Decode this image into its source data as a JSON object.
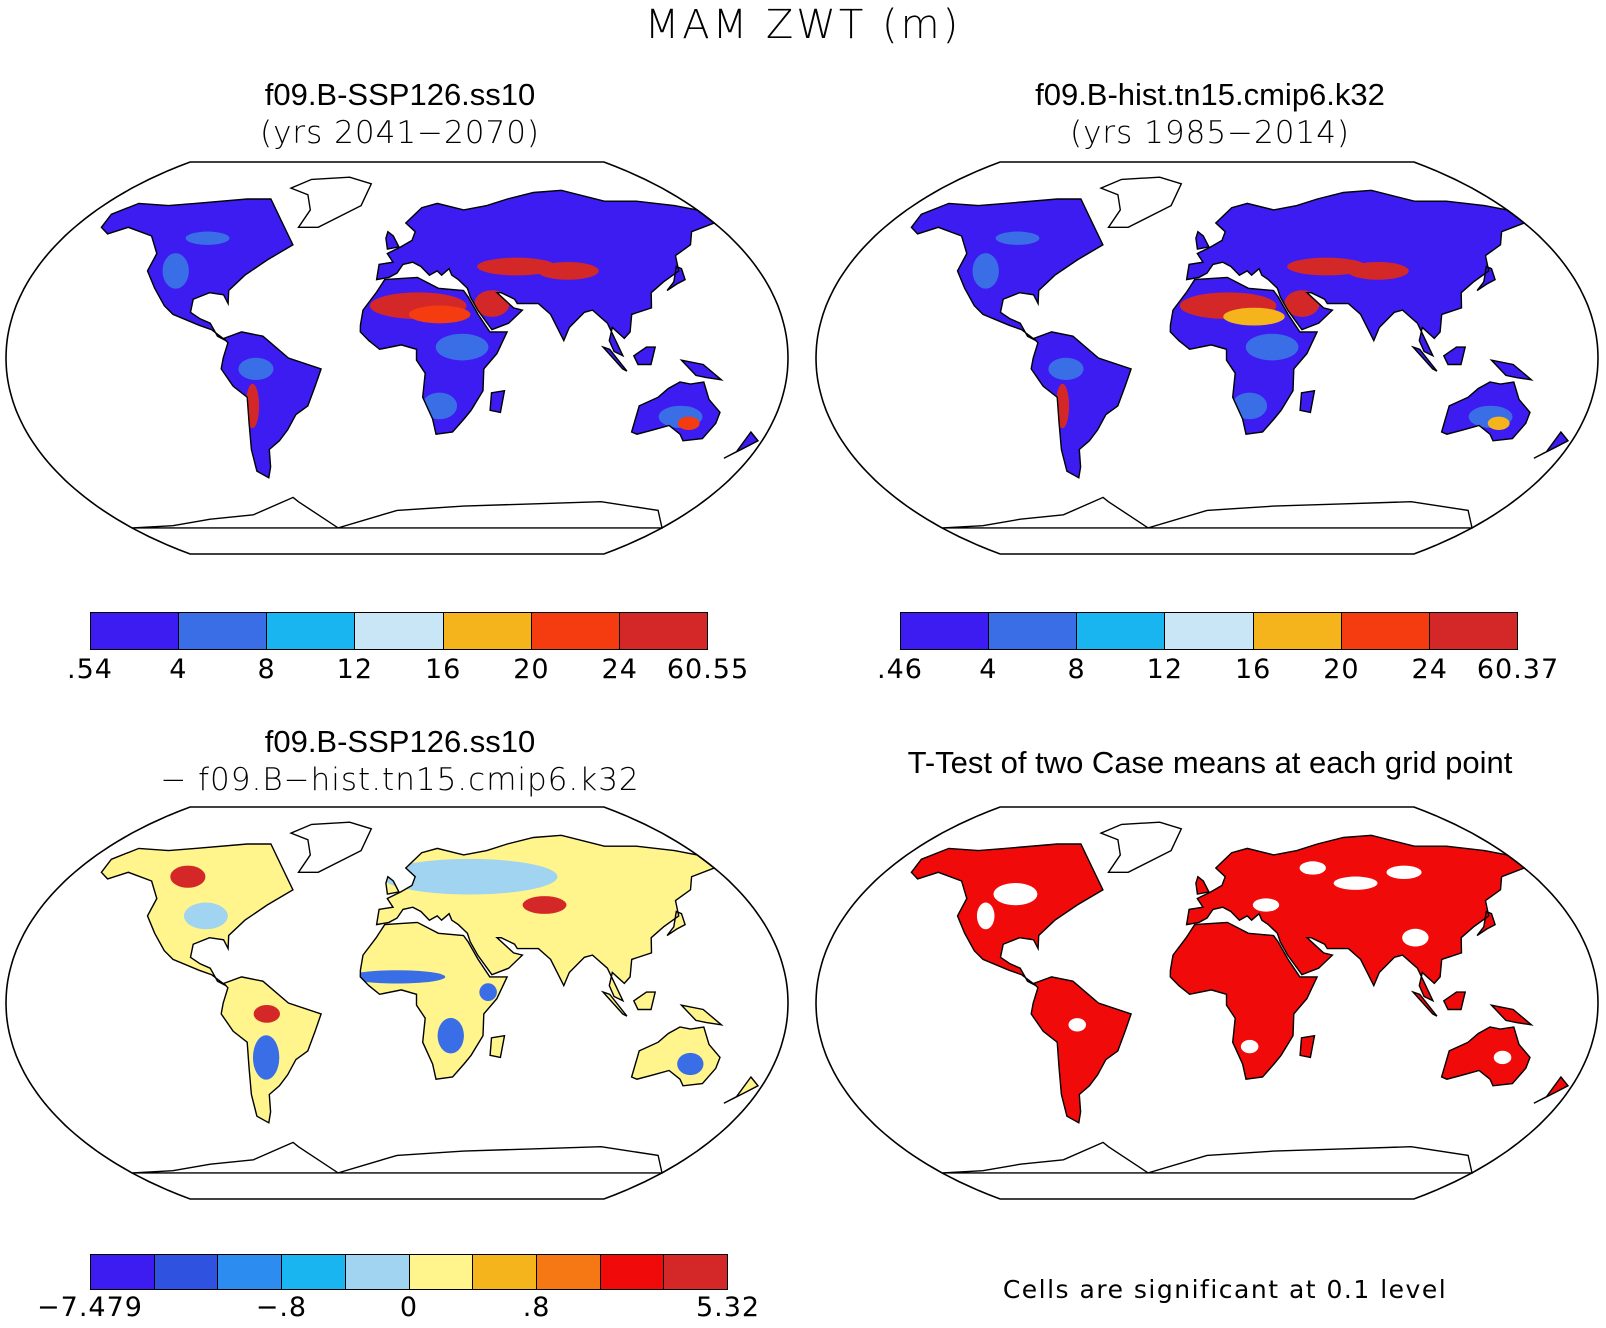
{
  "title": "MAM ZWT (m)",
  "panels": [
    {
      "id": "future",
      "line1": "f09.B-SSP126.ss10",
      "line2": "(yrs 2041−2070)",
      "colorbar": {
        "colors": [
          "#3c1cf0",
          "#3a6ee6",
          "#18b5f0",
          "#c8e6f5",
          "#f5b41c",
          "#f53c10",
          "#d42828"
        ],
        "labels": [
          ".54",
          "4",
          "8",
          "12",
          "16",
          "20",
          "24",
          "60.55"
        ]
      }
    },
    {
      "id": "historical",
      "line1": "f09.B-hist.tn15.cmip6.k32",
      "line2": "(yrs 1985−2014)",
      "colorbar": {
        "colors": [
          "#3c1cf0",
          "#3a6ee6",
          "#18b5f0",
          "#c8e6f5",
          "#f5b41c",
          "#f53c10",
          "#d42828"
        ],
        "labels": [
          ".46",
          "4",
          "8",
          "12",
          "16",
          "20",
          "24",
          "60.37"
        ]
      }
    },
    {
      "id": "difference",
      "line1": "f09.B-SSP126.ss10",
      "line2": "− f09.B−hist.tn15.cmip6.k32",
      "colorbar": {
        "colors": [
          "#3c1cf0",
          "#3052e0",
          "#2c8cf0",
          "#18b5f0",
          "#a0d4f0",
          "#fff58c",
          "#f5b41c",
          "#f57814",
          "#f00a0a",
          "#d42828"
        ],
        "labels": [
          "−7.479",
          "−.8",
          "0",
          ".8",
          "5.32"
        ],
        "label_edges": [
          0,
          3,
          5,
          7,
          10
        ]
      }
    },
    {
      "id": "ttest",
      "line1": "T-Test of two Case means at each grid point",
      "note": "Cells are significant at 0.1 level"
    }
  ],
  "land_colors": {
    "future": [
      "#3c1cf0",
      "#3a6ee6",
      "#d42828",
      "#f53c10"
    ],
    "historical": [
      "#3c1cf0",
      "#3a6ee6",
      "#d42828",
      "#f5b41c"
    ],
    "difference": [
      "#fff58c",
      "#a0d4f0",
      "#3a6ee6",
      "#d42828"
    ],
    "ttest": [
      "#f00a0a",
      "#f00a0a",
      "#f00a0a",
      "#ffffff"
    ]
  }
}
